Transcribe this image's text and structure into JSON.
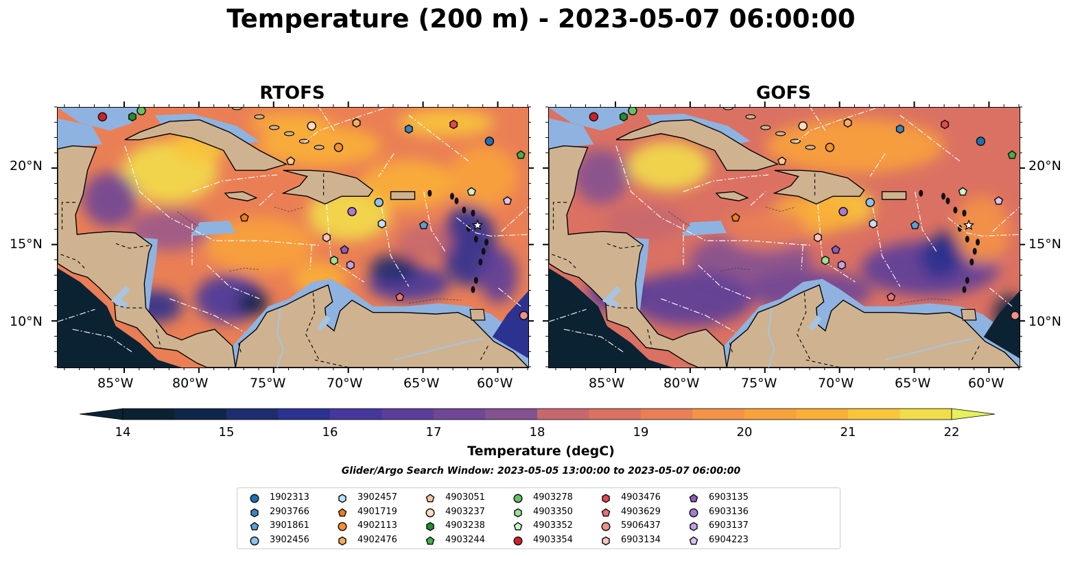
{
  "title": "Temperature (200 m) - 2023-05-07 06:00:00",
  "panels": [
    {
      "title": "RTOFS",
      "variant": "rtofs"
    },
    {
      "title": "GOFS",
      "variant": "gofs"
    }
  ],
  "axes": {
    "lon_ticks": [
      "85°W",
      "80°W",
      "75°W",
      "70°W",
      "65°W",
      "60°W"
    ],
    "lat_ticks": [
      "20°N",
      "15°N",
      "10°N"
    ],
    "lon_range": [
      -89.5,
      -58.0
    ],
    "lat_range": [
      7.0,
      24.0
    ]
  },
  "colorbar": {
    "label": "Temperature (degC)",
    "ticks": [
      "14",
      "15",
      "16",
      "17",
      "18",
      "19",
      "20",
      "21",
      "22"
    ],
    "range": [
      14,
      22
    ],
    "colors": [
      "#0b2233",
      "#10254a",
      "#1d2d6e",
      "#2c3290",
      "#46379c",
      "#5b3e9a",
      "#6f4796",
      "#845191",
      "#9a5989",
      "#b0617d",
      "#c7686f",
      "#db7162",
      "#ea7f55",
      "#f49246",
      "#f8a23c",
      "#faaf38",
      "#f8c53b",
      "#f2dd4a",
      "#e6f15c"
    ]
  },
  "search_window": "Glider/Argo Search Window: 2023-05-05 13:00:00 to 2023-05-07 06:00:00",
  "legend": [
    {
      "id": "1902313",
      "marker": "circle",
      "color": "#1f6fb5",
      "lon": -60.6,
      "lat": 21.8
    },
    {
      "id": "2903766",
      "marker": "hexagon",
      "color": "#3b84c4",
      "lon": -66.0,
      "lat": 22.6
    },
    {
      "id": "3901861",
      "marker": "pentagon",
      "color": "#5aa0d6",
      "lon": -65.0,
      "lat": 16.3
    },
    {
      "id": "3902456",
      "marker": "circle",
      "color": "#8ec2ec",
      "lon": -68.0,
      "lat": 17.8
    },
    {
      "id": "3902457",
      "marker": "hexagon",
      "color": "#bfe1f8",
      "lon": -67.8,
      "lat": 16.4
    },
    {
      "id": "4901719",
      "marker": "pentagon",
      "color": "#f07c1e",
      "lon": -77.0,
      "lat": 16.8
    },
    {
      "id": "4902113",
      "marker": "circle",
      "color": "#f5922e",
      "lon": -70.7,
      "lat": 21.4
    },
    {
      "id": "4902476",
      "marker": "hexagon",
      "color": "#f9ad5d",
      "lon": -69.5,
      "lat": 23.0
    },
    {
      "id": "4903051",
      "marker": "pentagon",
      "color": "#f9c898",
      "lon": -73.9,
      "lat": 20.5
    },
    {
      "id": "4903237",
      "marker": "circle",
      "color": "#fbdcc0",
      "lon": -72.5,
      "lat": 22.8
    },
    {
      "id": "4903238",
      "marker": "hexagon",
      "color": "#1f8f2c",
      "lon": -84.5,
      "lat": 23.4
    },
    {
      "id": "4903244",
      "marker": "pentagon",
      "color": "#3fb34a",
      "lon": -58.5,
      "lat": 20.9
    },
    {
      "id": "4903278",
      "marker": "circle",
      "color": "#63c364",
      "lon": -83.9,
      "lat": 23.8
    },
    {
      "id": "4903350",
      "marker": "hexagon",
      "color": "#9ee29a",
      "lon": -71.0,
      "lat": 14.0
    },
    {
      "id": "4903352",
      "marker": "pentagon",
      "color": "#cdf4c8",
      "lon": -61.8,
      "lat": 18.5
    },
    {
      "id": "4903354",
      "marker": "circle",
      "color": "#d0202a",
      "lon": -86.5,
      "lat": 23.4
    },
    {
      "id": "4903476",
      "marker": "hexagon",
      "color": "#e04a4c",
      "lon": -63.0,
      "lat": 22.9
    },
    {
      "id": "4903629",
      "marker": "pentagon",
      "color": "#ee6f74",
      "lon": -66.6,
      "lat": 11.6
    },
    {
      "id": "5906437",
      "marker": "circle",
      "color": "#f08f8a",
      "lon": -58.3,
      "lat": 10.4
    },
    {
      "id": "6903134",
      "marker": "hexagon",
      "color": "#f8c4bf",
      "lon": -71.5,
      "lat": 15.5
    },
    {
      "id": "6903135",
      "marker": "pentagon",
      "color": "#8d5bbf",
      "lon": -70.3,
      "lat": 14.7
    },
    {
      "id": "6903136",
      "marker": "circle",
      "color": "#a97ad4",
      "lon": -69.8,
      "lat": 17.2
    },
    {
      "id": "6903137",
      "marker": "hexagon",
      "color": "#c4a0e3",
      "lon": -69.9,
      "lat": 13.7
    },
    {
      "id": "6904223",
      "marker": "pentagon",
      "color": "#dcc2f2",
      "lon": -59.4,
      "lat": 17.9
    }
  ]
}
